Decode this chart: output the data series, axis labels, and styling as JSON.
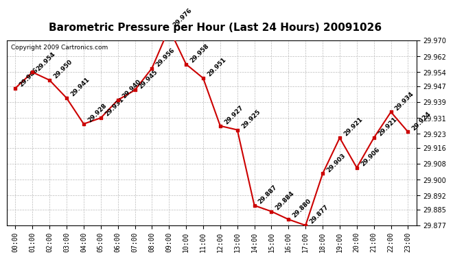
{
  "title": "Barometric Pressure per Hour (Last 24 Hours) 20091026",
  "copyright": "Copyright 2009 Cartronics.com",
  "hours": [
    "00:00",
    "01:00",
    "02:00",
    "03:00",
    "04:00",
    "05:00",
    "06:00",
    "07:00",
    "08:00",
    "09:00",
    "10:00",
    "11:00",
    "12:00",
    "13:00",
    "14:00",
    "15:00",
    "16:00",
    "17:00",
    "18:00",
    "19:00",
    "20:00",
    "21:00",
    "22:00",
    "23:00"
  ],
  "values": [
    29.946,
    29.954,
    29.95,
    29.941,
    29.928,
    29.931,
    29.94,
    29.945,
    29.956,
    29.976,
    29.958,
    29.951,
    29.927,
    29.925,
    29.887,
    29.884,
    29.88,
    29.877,
    29.903,
    29.921,
    29.906,
    29.921,
    29.934,
    29.924
  ],
  "line_color": "#cc0000",
  "marker_color": "#cc0000",
  "bg_color": "#ffffff",
  "plot_bg_color": "#ffffff",
  "grid_color": "#bbbbbb",
  "title_fontsize": 11,
  "tick_fontsize": 7,
  "annotation_fontsize": 6.5,
  "copyright_fontsize": 6.5,
  "ylim_min": 29.877,
  "ylim_max": 29.97,
  "ytick_values": [
    29.877,
    29.885,
    29.892,
    29.9,
    29.908,
    29.916,
    29.923,
    29.931,
    29.939,
    29.947,
    29.954,
    29.962,
    29.97
  ]
}
